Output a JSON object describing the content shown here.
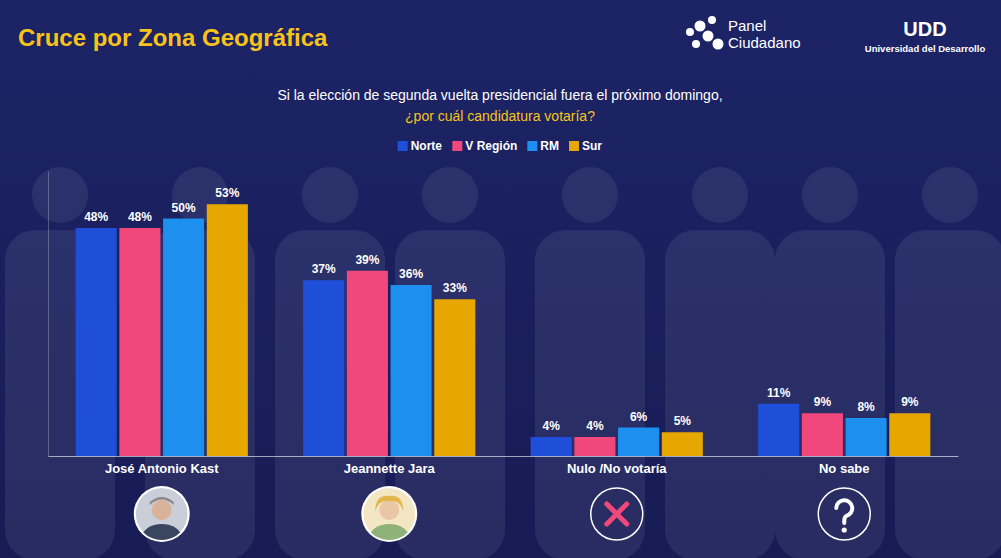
{
  "chart_data": {
    "type": "bar",
    "title": "Cruce por Zona Geográfica",
    "subtitle": "Si la elección de segunda vuelta presidencial fuera el próximo domingo,",
    "annotations": [
      "¿por cuál candidatura votaría?",
      "Panel Ciudadano",
      "UDD",
      "Universidad del Desarrollo"
    ],
    "categories": [
      "José Antonio Kast",
      "Jeannette Jara",
      "Nulo /No votaría",
      "No sabe"
    ],
    "series": [
      {
        "name": "Norte",
        "color": "#1f4fd8",
        "values": [
          48,
          37,
          4,
          11
        ],
        "value_labels": [
          "48%",
          "37%",
          "4%",
          "11%"
        ]
      },
      {
        "name": "V Región",
        "color": "#f0477c",
        "values": [
          48,
          39,
          4,
          9
        ],
        "value_labels": [
          "48%",
          "39%",
          "4%",
          "9%"
        ]
      },
      {
        "name": "RM",
        "color": "#1d8fef",
        "values": [
          50,
          36,
          6,
          8
        ],
        "value_labels": [
          "50%",
          "36%",
          "6%",
          "8%"
        ]
      },
      {
        "name": "Sur",
        "color": "#e6a700",
        "values": [
          53,
          33,
          5,
          9
        ],
        "value_labels": [
          "53%",
          "33%",
          "5%",
          "9%"
        ]
      }
    ],
    "ylim": [
      0,
      60
    ],
    "grid": false,
    "legend": "top",
    "data_labels": true,
    "tick_labels": "x"
  }
}
